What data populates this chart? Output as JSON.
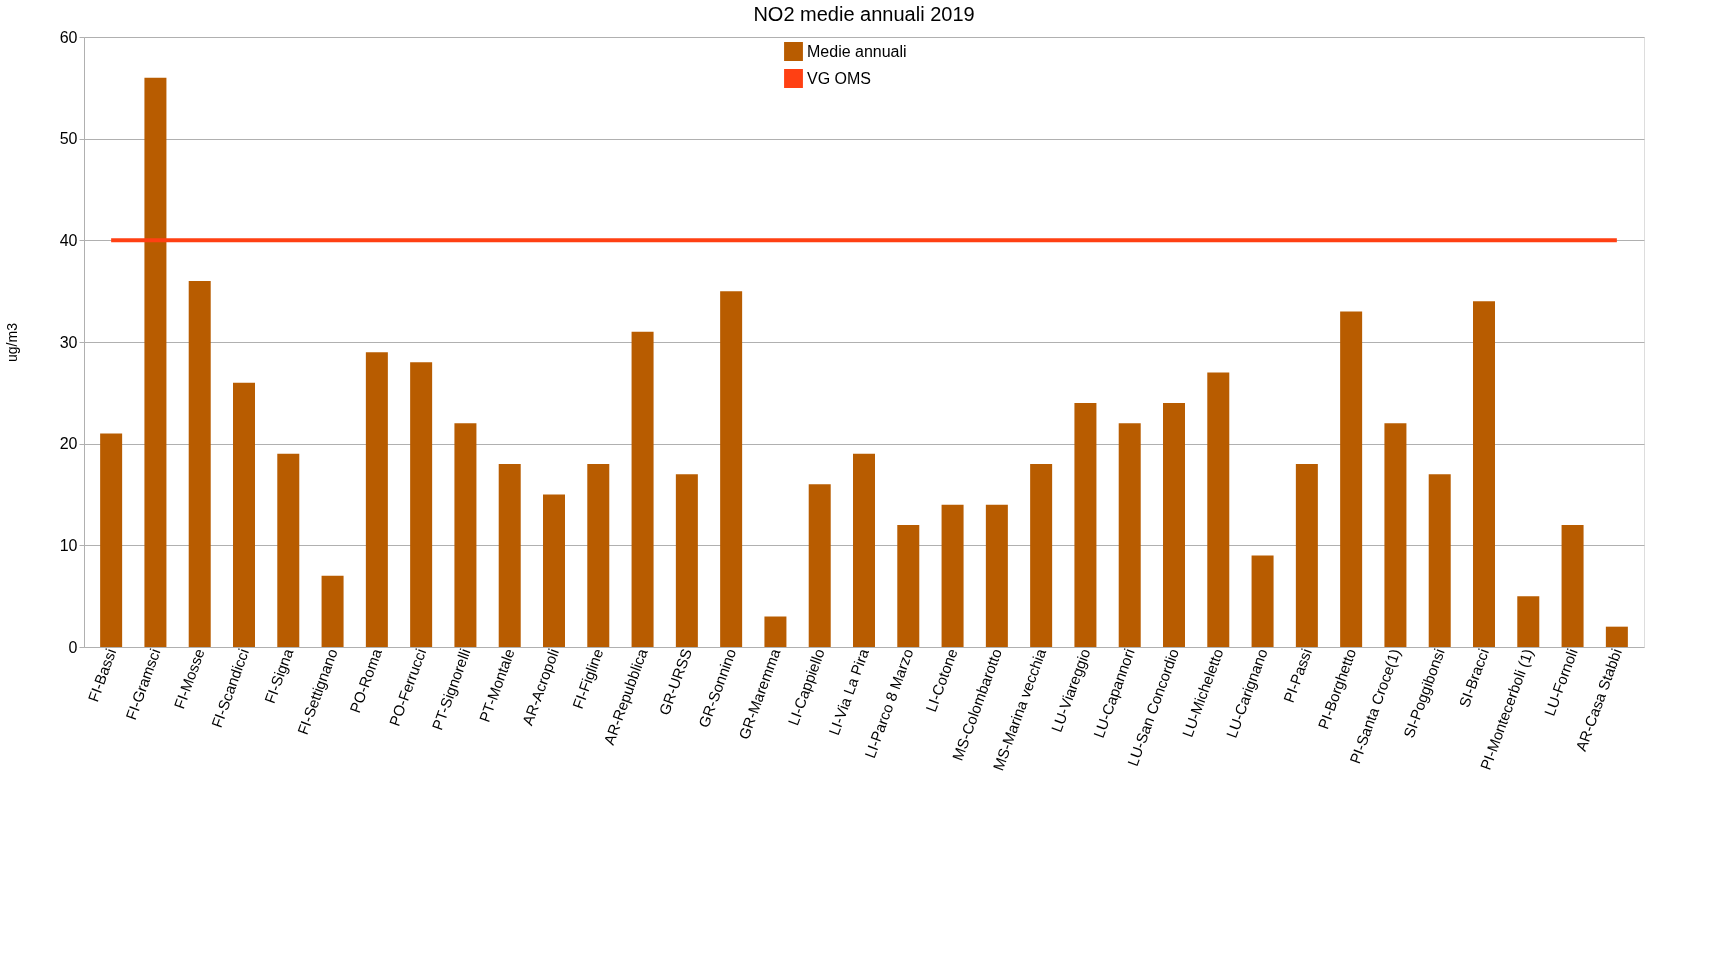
{
  "chart_data": {
    "type": "bar",
    "title": "NO2 medie annuali 2019",
    "ylabel": "ug/m3",
    "categories": [
      "FI-Bassi",
      "FI-Gramsci",
      "FI-Mosse",
      "FI-Scandicci",
      "FI-Signa",
      "FI-Settignano",
      "PO-Roma",
      "PO-Ferrucci",
      "PT-Signorelli",
      "PT-Montale",
      "AR-Acropoli",
      "FI-Figline",
      "AR-Repubblica",
      "GR-URSS",
      "GR-Sonnino",
      "GR-Maremma",
      "LI-Cappiello",
      "LI-Via La Pira",
      "LI-Parco 8 Marzo",
      "LI-Cotone",
      "MS-Colombarotto",
      "MS-Marina vecchia",
      "LU-Viareggio",
      "LU-Capannori",
      "LU-San Concordio",
      "LU-Micheletto",
      "LU-Carignano",
      "PI-Passi",
      "PI-Borghetto",
      "PI-Santa Croce(1)",
      "SI-Poggibonsi",
      "SI-Bracci",
      "PI-Montecerboli (1)",
      "LU-Fornoli",
      "AR-Casa Stabbi"
    ],
    "series": [
      {
        "name": "Medie annuali",
        "color": "#b85c00",
        "values": [
          21,
          56,
          36,
          26,
          19,
          7,
          29,
          28,
          22,
          18,
          15,
          18,
          31,
          17,
          35,
          3,
          16,
          19,
          12,
          14,
          14,
          18,
          24,
          22,
          24,
          27,
          9,
          18,
          33,
          22,
          17,
          34,
          5,
          12,
          2
        ]
      },
      {
        "name": "VG OMS",
        "type": "line",
        "color": "#ff4013",
        "values": [
          40,
          40,
          40,
          40,
          40,
          40,
          40,
          40,
          40,
          40,
          40,
          40,
          40,
          40,
          40,
          40,
          40,
          40,
          40,
          40,
          40,
          40,
          40,
          40,
          40,
          40,
          40,
          40,
          40,
          40,
          40,
          40,
          40,
          40,
          40
        ]
      }
    ],
    "ylim": [
      0,
      60
    ],
    "yticks": [
      0,
      10,
      20,
      30,
      40,
      50,
      60
    ],
    "grid": "y",
    "legend": "top"
  }
}
